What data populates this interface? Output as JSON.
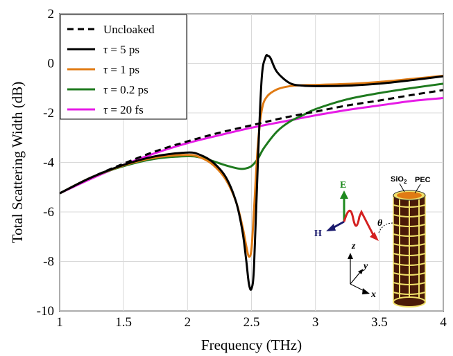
{
  "chart_data": {
    "type": "line",
    "xlabel": "Frequency (THz)",
    "ylabel": "Total Scattering Width (dB)",
    "xlim": [
      1,
      4
    ],
    "ylim": [
      -10,
      2
    ],
    "xticks": [
      1,
      1.5,
      2,
      2.5,
      3,
      3.5,
      4
    ],
    "xtick_labels": [
      "1",
      "1.5",
      "2",
      "2.5",
      "3",
      "3.5",
      "4"
    ],
    "yticks": [
      2,
      0,
      -2,
      -4,
      -6,
      -8,
      -10
    ],
    "ytick_labels": [
      "2",
      "0",
      "-2",
      "-4",
      "-6",
      "-8",
      "-10"
    ],
    "grid": true,
    "legend_position": "top-left",
    "series": [
      {
        "legend_label": "Uncloaked",
        "tau_label": "",
        "color": "#000000",
        "style": "dashed",
        "x": [
          1.0,
          1.25,
          1.5,
          1.75,
          2.0,
          2.25,
          2.5,
          2.75,
          3.0,
          3.25,
          3.5,
          3.75,
          4.0
        ],
        "y": [
          -5.25,
          -4.6,
          -4.05,
          -3.55,
          -3.15,
          -2.8,
          -2.5,
          -2.2,
          -1.95,
          -1.7,
          -1.5,
          -1.28,
          -1.08
        ]
      },
      {
        "legend_label": " = 5 ps",
        "tau_label": "τ",
        "color": "#000000",
        "style": "solid",
        "x": [
          1.0,
          1.25,
          1.5,
          1.75,
          2.0,
          2.1,
          2.2,
          2.3,
          2.38,
          2.43,
          2.46,
          2.48,
          2.5,
          2.52,
          2.55,
          2.58,
          2.61,
          2.63,
          2.65,
          2.7,
          2.8,
          2.9,
          3.0,
          3.25,
          3.5,
          3.75,
          4.0
        ],
        "y": [
          -5.25,
          -4.6,
          -4.1,
          -3.75,
          -3.6,
          -3.7,
          -4.0,
          -4.6,
          -5.6,
          -6.8,
          -8.0,
          -8.9,
          -9.1,
          -8.2,
          -4.0,
          -0.6,
          0.25,
          0.3,
          0.2,
          -0.35,
          -0.8,
          -0.9,
          -0.92,
          -0.9,
          -0.82,
          -0.68,
          -0.52
        ]
      },
      {
        "legend_label": " = 1 ps",
        "tau_label": "τ",
        "color": "#e07b14",
        "style": "solid",
        "x": [
          1.0,
          1.25,
          1.5,
          1.75,
          2.0,
          2.1,
          2.2,
          2.3,
          2.38,
          2.43,
          2.46,
          2.48,
          2.5,
          2.52,
          2.55,
          2.58,
          2.62,
          2.7,
          2.8,
          2.9,
          3.0,
          3.25,
          3.5,
          3.75,
          4.0
        ],
        "y": [
          -5.25,
          -4.6,
          -4.12,
          -3.8,
          -3.7,
          -3.8,
          -4.1,
          -4.7,
          -5.6,
          -6.6,
          -7.4,
          -7.8,
          -7.5,
          -5.9,
          -3.3,
          -1.9,
          -1.35,
          -1.05,
          -0.92,
          -0.88,
          -0.87,
          -0.83,
          -0.75,
          -0.63,
          -0.5
        ]
      },
      {
        "legend_label": " = 0.2 ps",
        "tau_label": "τ",
        "color": "#1e7a1e",
        "style": "solid",
        "x": [
          1.0,
          1.25,
          1.5,
          1.75,
          2.0,
          2.1,
          2.2,
          2.3,
          2.4,
          2.45,
          2.5,
          2.55,
          2.6,
          2.7,
          2.8,
          2.9,
          3.0,
          3.25,
          3.5,
          3.75,
          4.0
        ],
        "y": [
          -5.25,
          -4.6,
          -4.15,
          -3.85,
          -3.75,
          -3.8,
          -3.95,
          -4.12,
          -4.25,
          -4.25,
          -4.15,
          -3.85,
          -3.4,
          -2.75,
          -2.35,
          -2.1,
          -1.85,
          -1.45,
          -1.2,
          -1.0,
          -0.82
        ]
      },
      {
        "legend_label": " = 20 fs",
        "tau_label": "τ",
        "color": "#e61be6",
        "style": "solid",
        "x": [
          1.0,
          1.25,
          1.5,
          1.75,
          2.0,
          2.25,
          2.5,
          2.75,
          3.0,
          3.25,
          3.5,
          3.75,
          4.0
        ],
        "y": [
          -5.25,
          -4.65,
          -4.1,
          -3.62,
          -3.22,
          -2.9,
          -2.6,
          -2.35,
          -2.1,
          -1.88,
          -1.7,
          -1.52,
          -1.4
        ]
      }
    ]
  },
  "inset": {
    "e_label": "E",
    "h_label": "H",
    "theta_label": "θ",
    "z_label": "z",
    "y_label": "y",
    "x_label": "x",
    "sio2_label": "SiO",
    "sio2_sub": "2",
    "pec_label": "PEC",
    "colors": {
      "e_arrow": "#1e8a1e",
      "h_arrow": "#1a1a6e",
      "k_arrow": "#d42020",
      "cylinder_fill": "#4a1a08",
      "cylinder_grid": "#f0e06a",
      "cap": "#e07b14"
    }
  }
}
